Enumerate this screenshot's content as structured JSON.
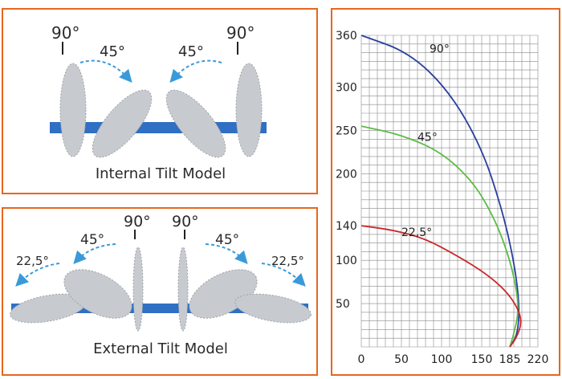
{
  "internal_panel": {
    "angle_left_90": "90°",
    "angle_left_45": "45°",
    "angle_right_45": "45°",
    "angle_right_90": "90°",
    "caption": "Internal Tilt Model"
  },
  "external_panel": {
    "angle_left_22": "22,5°",
    "angle_left_45": "45°",
    "angle_left_90": "90°",
    "angle_right_90": "90°",
    "angle_right_45": "45°",
    "angle_right_22": "22,5°",
    "caption": "External Tilt Model"
  },
  "colors": {
    "panel_border": "#e8661e",
    "rail": "#2f6fc4",
    "arrow": "#3a9ad9",
    "blade": "#c7cbcf",
    "curve_90": "#2a3f9e",
    "curve_45": "#5dbb45",
    "curve_22_5": "#c9282b"
  },
  "chart_data": {
    "type": "line",
    "x_ticks": [
      "0",
      "50",
      "100",
      "150",
      "185",
      "220"
    ],
    "y_ticks": [
      "50",
      "100",
      "140",
      "200",
      "250",
      "300",
      "360"
    ],
    "xlim": [
      0,
      220
    ],
    "ylim": [
      0,
      360
    ],
    "grid": true,
    "series": [
      {
        "name": "90°",
        "color": "#2a3f9e",
        "points": [
          [
            0,
            360
          ],
          [
            60,
            340
          ],
          [
            110,
            295
          ],
          [
            150,
            230
          ],
          [
            175,
            160
          ],
          [
            190,
            100
          ],
          [
            197,
            50
          ],
          [
            195,
            15
          ],
          [
            185,
            0
          ]
        ]
      },
      {
        "name": "45°",
        "color": "#5dbb45",
        "points": [
          [
            0,
            255
          ],
          [
            50,
            245
          ],
          [
            100,
            225
          ],
          [
            140,
            190
          ],
          [
            165,
            150
          ],
          [
            182,
            110
          ],
          [
            193,
            70
          ],
          [
            196,
            40
          ],
          [
            190,
            15
          ],
          [
            185,
            0
          ]
        ]
      },
      {
        "name": "22,5°",
        "color": "#c9282b",
        "points": [
          [
            0,
            140
          ],
          [
            40,
            135
          ],
          [
            80,
            125
          ],
          [
            120,
            105
          ],
          [
            155,
            85
          ],
          [
            180,
            65
          ],
          [
            195,
            45
          ],
          [
            200,
            28
          ],
          [
            193,
            10
          ],
          [
            185,
            0
          ]
        ]
      }
    ]
  }
}
